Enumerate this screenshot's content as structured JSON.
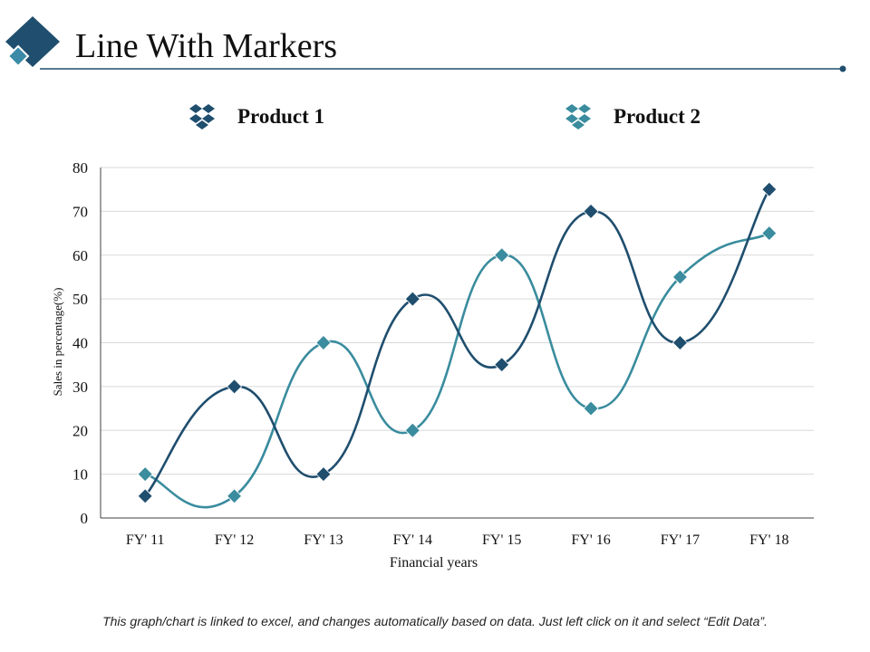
{
  "page": {
    "title": "Line With Markers",
    "footnote": "This graph/chart is linked to excel, and changes automatically based on data. Just left click on it and select “Edit Data”."
  },
  "colors": {
    "header_dark": "#1f4e6e",
    "header_light": "#3a8aa8",
    "rule": "#1f4e6e",
    "series_1": "#1f4e6e",
    "series_2": "#3a8c9e",
    "grid": "#d9d9d9",
    "axis": "#404040"
  },
  "icons": {
    "header": "diamond-logo-icon",
    "legend_1": "stacked-diamonds-icon",
    "legend_2": "stacked-diamonds-icon"
  },
  "chart_data": {
    "type": "line",
    "title": "",
    "xlabel": "Financial years",
    "ylabel": "Sales in percentage(%)",
    "categories": [
      "FY' 11",
      "FY' 12",
      "FY' 13",
      "FY' 14",
      "FY' 15",
      "FY' 16",
      "FY' 17",
      "FY' 18"
    ],
    "ylim": [
      0,
      80
    ],
    "yticks": [
      0,
      10,
      20,
      30,
      40,
      50,
      60,
      70,
      80
    ],
    "ytick_labels": [
      "0",
      "10",
      "20",
      "30",
      "40",
      "50",
      "60",
      "70",
      "80"
    ],
    "grid": true,
    "smooth": true,
    "marker": "diamond",
    "legend_position": "top",
    "series": [
      {
        "name": "Product 1",
        "color": "#1f4e6e",
        "values": [
          5,
          30,
          10,
          50,
          35,
          70,
          40,
          75
        ]
      },
      {
        "name": "Product 2",
        "color": "#3a8c9e",
        "values": [
          10,
          5,
          40,
          20,
          60,
          25,
          55,
          65
        ]
      }
    ]
  }
}
